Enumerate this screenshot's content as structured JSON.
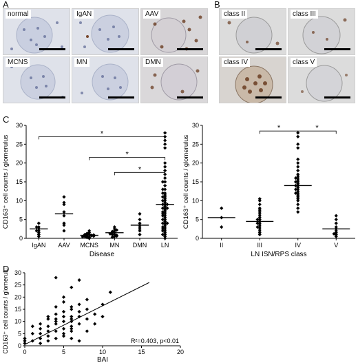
{
  "panels": {
    "A": {
      "letter": "A",
      "images": [
        {
          "label": "normal"
        },
        {
          "label": "IgAN"
        },
        {
          "label": "AAV"
        },
        {
          "label": "MCNS"
        },
        {
          "label": "MN"
        },
        {
          "label": "DMN"
        }
      ]
    },
    "B": {
      "letter": "B",
      "images": [
        {
          "label": "class II"
        },
        {
          "label": "class III"
        },
        {
          "label": "class IV"
        },
        {
          "label": "class V"
        }
      ]
    },
    "C": {
      "letter": "C"
    },
    "D": {
      "letter": "D"
    }
  },
  "chart_data": [
    {
      "id": "disease",
      "type": "scatter",
      "xlabel": "Disease",
      "ylabel": "CD163⁺ cell counts / glomerulus",
      "categories": [
        "IgAN",
        "AAV",
        "MCNS",
        "MN",
        "DMN",
        "LN"
      ],
      "ylim": [
        0,
        30
      ],
      "yticks": [
        0,
        5,
        10,
        15,
        20,
        25,
        30
      ],
      "points": [
        [
          2,
          1,
          3,
          1.5,
          2.5,
          4,
          2,
          3,
          0.5
        ],
        [
          2,
          4,
          6,
          7,
          9,
          11,
          9.5,
          3.5
        ],
        [
          0,
          0.3,
          0.5,
          0.7,
          1,
          1.2,
          1.5,
          0.5,
          0.8,
          1,
          0.2,
          0.6,
          1.3,
          2,
          0.4,
          0.9
        ],
        [
          0.5,
          1,
          1.5,
          2,
          2.5,
          1,
          0.8,
          1.2,
          1.8,
          0.3,
          2.2,
          3,
          1.5,
          0.6
        ],
        [
          1,
          2,
          2.5,
          3.5,
          4,
          5,
          6.5,
          3
        ],
        [
          0,
          0.5,
          1,
          1.5,
          2,
          2.5,
          3,
          3.5,
          4,
          4.5,
          5,
          5.5,
          6,
          6.5,
          7,
          7.5,
          8,
          8.5,
          9,
          9.5,
          10,
          10.5,
          11,
          11.5,
          12,
          13,
          14,
          15,
          16,
          17,
          18,
          19,
          20,
          24,
          25,
          26,
          27,
          28,
          1,
          2,
          3,
          4,
          5,
          6,
          7,
          8,
          9,
          10,
          11,
          12,
          2.5,
          6.5,
          8,
          13,
          15,
          9,
          4
        ]
      ],
      "medians": [
        2.5,
        6.5,
        0.8,
        1.5,
        3.5,
        9
      ],
      "significance": [
        {
          "from": "IgAN",
          "to": "LN",
          "y": 27,
          "label": "*"
        },
        {
          "from": "MCNS",
          "to": "LN",
          "y": 21.5,
          "label": "*"
        },
        {
          "from": "MN",
          "to": "LN",
          "y": 17.5,
          "label": "*"
        }
      ]
    },
    {
      "id": "ln-class",
      "type": "scatter",
      "xlabel": "LN ISN/RPS class",
      "ylabel": "CD163⁺ cell counts / glomerulus",
      "categories": [
        "II",
        "III",
        "IV",
        "V"
      ],
      "ylim": [
        0,
        30
      ],
      "yticks": [
        0,
        5,
        10,
        15,
        20,
        25,
        30
      ],
      "points": [
        [
          3,
          5.5,
          8
        ],
        [
          1,
          1.5,
          2,
          2.5,
          3,
          3.5,
          4,
          4.5,
          5,
          5.5,
          6,
          6.5,
          7,
          7.5,
          8,
          9,
          10,
          10.5,
          3,
          4,
          5
        ],
        [
          7,
          8,
          9,
          10,
          11,
          11.5,
          12,
          12.5,
          13,
          13.5,
          14,
          14.5,
          15,
          15.5,
          16,
          16.5,
          17,
          18,
          19,
          20,
          21,
          24,
          25,
          27,
          28,
          13,
          14,
          15,
          12,
          10.5,
          16
        ],
        [
          0.5,
          1,
          1.5,
          2,
          2.5,
          3,
          4,
          5,
          6,
          1.2
        ]
      ],
      "medians": [
        5.5,
        4.5,
        14,
        2.5
      ],
      "significance": [
        {
          "from": "III",
          "to": "IV",
          "y": 28.5,
          "label": "*"
        },
        {
          "from": "IV",
          "to": "V",
          "y": 28.5,
          "label": "*"
        }
      ]
    },
    {
      "id": "bai",
      "type": "scatter",
      "xlabel": "BAI",
      "ylabel": "CD163⁺ cell counts / glomerulus",
      "xlim": [
        0,
        20
      ],
      "ylim": [
        0,
        30
      ],
      "xticks": [
        0,
        5,
        10,
        15,
        20
      ],
      "yticks": [
        0,
        5,
        10,
        15,
        20,
        25,
        30
      ],
      "annotation": "R²=0.403, p<0.01",
      "regression": {
        "x0": 0,
        "y0": 0.5,
        "x1": 16,
        "y1": 26
      },
      "x": [
        0,
        0,
        0,
        1,
        1,
        2,
        2,
        2,
        2,
        3,
        3,
        3,
        3,
        3,
        4,
        4,
        4,
        4,
        4,
        4,
        5,
        5,
        5,
        5,
        5,
        5,
        5,
        6,
        6,
        6,
        6,
        6,
        6,
        6,
        6,
        7,
        7,
        7,
        7,
        7,
        8,
        8,
        8,
        8,
        9,
        9,
        10,
        10,
        11,
        4,
        5,
        6,
        3,
        7,
        2,
        1,
        4,
        6
      ],
      "y": [
        1,
        2,
        3,
        5,
        8,
        3,
        5,
        7,
        9,
        2,
        6,
        8,
        11,
        12,
        3,
        6,
        9,
        13,
        16,
        28,
        4,
        7,
        10,
        12,
        14,
        18,
        20,
        3,
        6,
        8,
        10,
        11,
        12,
        15,
        24,
        2,
        9,
        14,
        17,
        27,
        6,
        11,
        15,
        19,
        9,
        13,
        12,
        17,
        22,
        10,
        5,
        16,
        4,
        12,
        1,
        2,
        11,
        7
      ]
    }
  ]
}
